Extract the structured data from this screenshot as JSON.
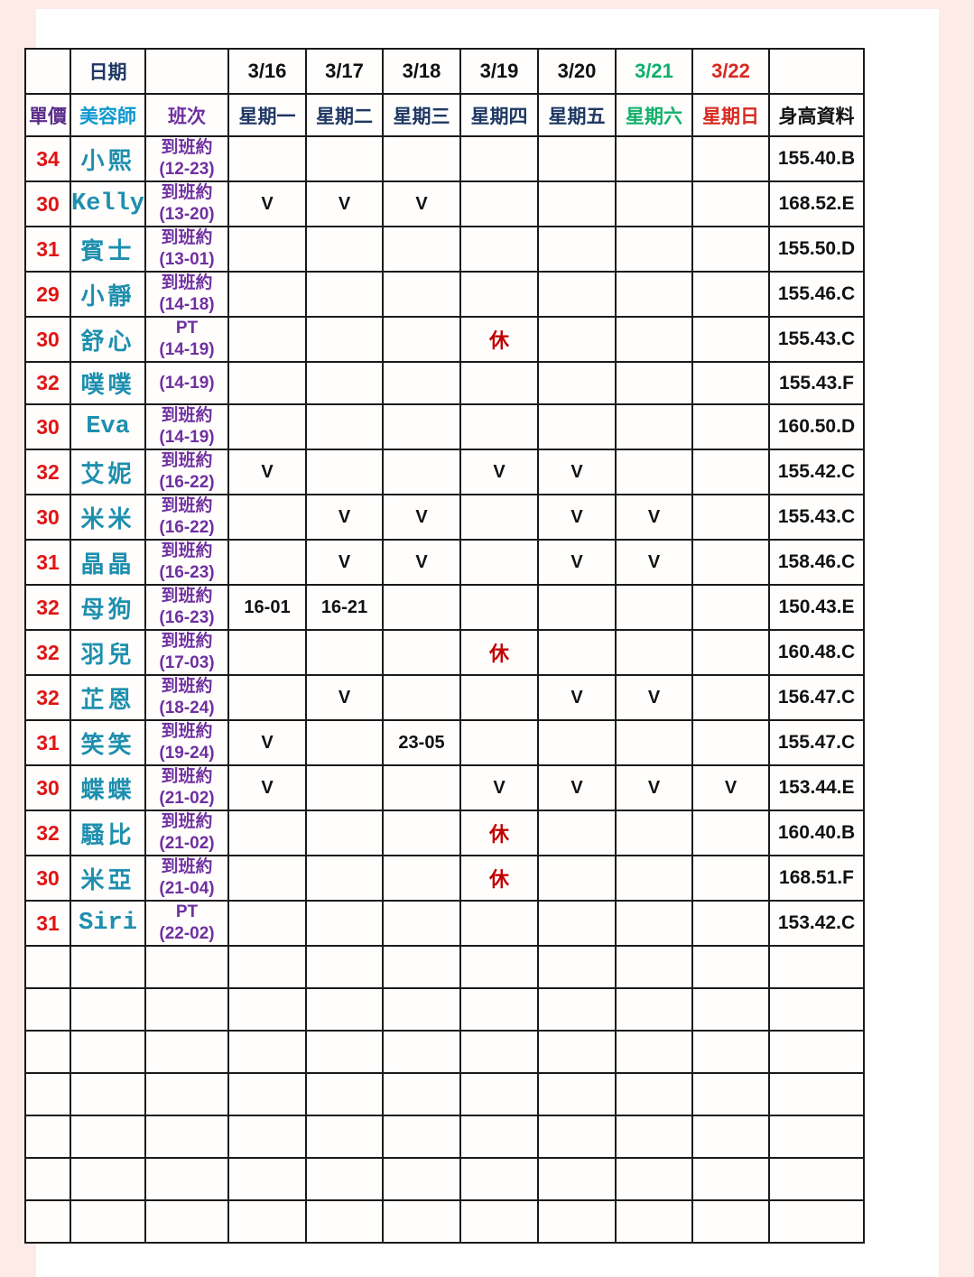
{
  "page": {
    "background": "#fcebe7",
    "paper": "#ffffff"
  },
  "colors": {
    "page_pink": "#fcebe7",
    "grid": "#1a1a1a",
    "price_red": "#e01412",
    "name_teal": "#1e8fae",
    "shift_purple": "#7030a0",
    "navy": "#1f3864",
    "dark": "#111111",
    "beautician_blue": "#0d97cf",
    "price_header_purple": "#5b2b8a",
    "green": "#10b06a",
    "red": "#d92a20",
    "rest_red": "#c00000",
    "mark_black": "#111111"
  },
  "table": {
    "header": {
      "date_label": "日期",
      "price_col": "單價",
      "beautician_col": "美容師",
      "shift_col": "班次",
      "height_col": "身高資料",
      "dates": [
        {
          "label": "3/16",
          "tone": "dark"
        },
        {
          "label": "3/17",
          "tone": "dark"
        },
        {
          "label": "3/18",
          "tone": "dark"
        },
        {
          "label": "3/19",
          "tone": "dark"
        },
        {
          "label": "3/20",
          "tone": "dark"
        },
        {
          "label": "3/21",
          "tone": "green"
        },
        {
          "label": "3/22",
          "tone": "red"
        }
      ],
      "days": [
        {
          "label": "星期一",
          "tone": "navy"
        },
        {
          "label": "星期二",
          "tone": "navy"
        },
        {
          "label": "星期三",
          "tone": "navy"
        },
        {
          "label": "星期四",
          "tone": "navy"
        },
        {
          "label": "星期五",
          "tone": "navy"
        },
        {
          "label": "星期六",
          "tone": "green"
        },
        {
          "label": "星期日",
          "tone": "red"
        }
      ]
    },
    "rest_mark": "休",
    "rows": [
      {
        "price": "34",
        "name": "小熙",
        "shift1": "到班約",
        "shift2": "(12-23)",
        "cells": [
          "",
          "",
          "",
          "",
          "",
          "",
          ""
        ],
        "height": "155.40.B"
      },
      {
        "price": "30",
        "name": "Kelly",
        "shift1": "到班約",
        "shift2": "(13-20)",
        "cells": [
          "V",
          "V",
          "V",
          "",
          "",
          "",
          ""
        ],
        "height": "168.52.E"
      },
      {
        "price": "31",
        "name": "賓士",
        "shift1": "到班約",
        "shift2": "(13-01)",
        "cells": [
          "",
          "",
          "",
          "",
          "",
          "",
          ""
        ],
        "height": "155.50.D"
      },
      {
        "price": "29",
        "name": "小靜",
        "shift1": "到班約",
        "shift2": "(14-18)",
        "cells": [
          "",
          "",
          "",
          "",
          "",
          "",
          ""
        ],
        "height": "155.46.C"
      },
      {
        "price": "30",
        "name": "舒心",
        "shift1": "PT",
        "shift2": "(14-19)",
        "cells": [
          "",
          "",
          "",
          "休",
          "",
          "",
          ""
        ],
        "height": "155.43.C"
      },
      {
        "price": "32",
        "name": "噗噗",
        "shift1": "",
        "shift2": "(14-19)",
        "cells": [
          "",
          "",
          "",
          "",
          "",
          "",
          ""
        ],
        "height": "155.43.F"
      },
      {
        "price": "30",
        "name": "Eva",
        "shift1": "到班約",
        "shift2": "(14-19)",
        "cells": [
          "",
          "",
          "",
          "",
          "",
          "",
          ""
        ],
        "height": "160.50.D"
      },
      {
        "price": "32",
        "name": "艾妮",
        "shift1": "到班約",
        "shift2": "(16-22)",
        "cells": [
          "V",
          "",
          "",
          "V",
          "V",
          "",
          ""
        ],
        "height": "155.42.C"
      },
      {
        "price": "30",
        "name": "米米",
        "shift1": "到班約",
        "shift2": "(16-22)",
        "cells": [
          "",
          "V",
          "V",
          "",
          "V",
          "V",
          ""
        ],
        "height": "155.43.C"
      },
      {
        "price": "31",
        "name": "晶晶",
        "shift1": "到班約",
        "shift2": "(16-23)",
        "cells": [
          "",
          "V",
          "V",
          "",
          "V",
          "V",
          ""
        ],
        "height": "158.46.C"
      },
      {
        "price": "32",
        "name": "母狗",
        "shift1": "到班約",
        "shift2": "(16-23)",
        "cells": [
          "16-01",
          "16-21",
          "",
          "",
          "",
          "",
          ""
        ],
        "height": "150.43.E"
      },
      {
        "price": "32",
        "name": "羽兒",
        "shift1": "到班約",
        "shift2": "(17-03)",
        "cells": [
          "",
          "",
          "",
          "休",
          "",
          "",
          ""
        ],
        "height": "160.48.C"
      },
      {
        "price": "32",
        "name": "芷恩",
        "shift1": "到班約",
        "shift2": "(18-24)",
        "cells": [
          "",
          "V",
          "",
          "",
          "V",
          "V",
          ""
        ],
        "height": "156.47.C"
      },
      {
        "price": "31",
        "name": "笑笑",
        "shift1": "到班約",
        "shift2": "(19-24)",
        "cells": [
          "V",
          "",
          "23-05",
          "",
          "",
          "",
          ""
        ],
        "height": "155.47.C"
      },
      {
        "price": "30",
        "name": "蝶蝶",
        "shift1": "到班約",
        "shift2": "(21-02)",
        "cells": [
          "V",
          "",
          "",
          "V",
          "V",
          "V",
          "V"
        ],
        "height": "153.44.E"
      },
      {
        "price": "32",
        "name": "騷比",
        "shift1": "到班約",
        "shift2": "(21-02)",
        "cells": [
          "",
          "",
          "",
          "休",
          "",
          "",
          ""
        ],
        "height": "160.40.B"
      },
      {
        "price": "30",
        "name": "米亞",
        "shift1": "到班約",
        "shift2": "(21-04)",
        "cells": [
          "",
          "",
          "",
          "休",
          "",
          "",
          ""
        ],
        "height": "168.51.F"
      },
      {
        "price": "31",
        "name": "Siri",
        "shift1": "PT",
        "shift2": "(22-02)",
        "cells": [
          "",
          "",
          "",
          "",
          "",
          "",
          ""
        ],
        "height": "153.42.C"
      }
    ],
    "empty_row_count": 7
  }
}
